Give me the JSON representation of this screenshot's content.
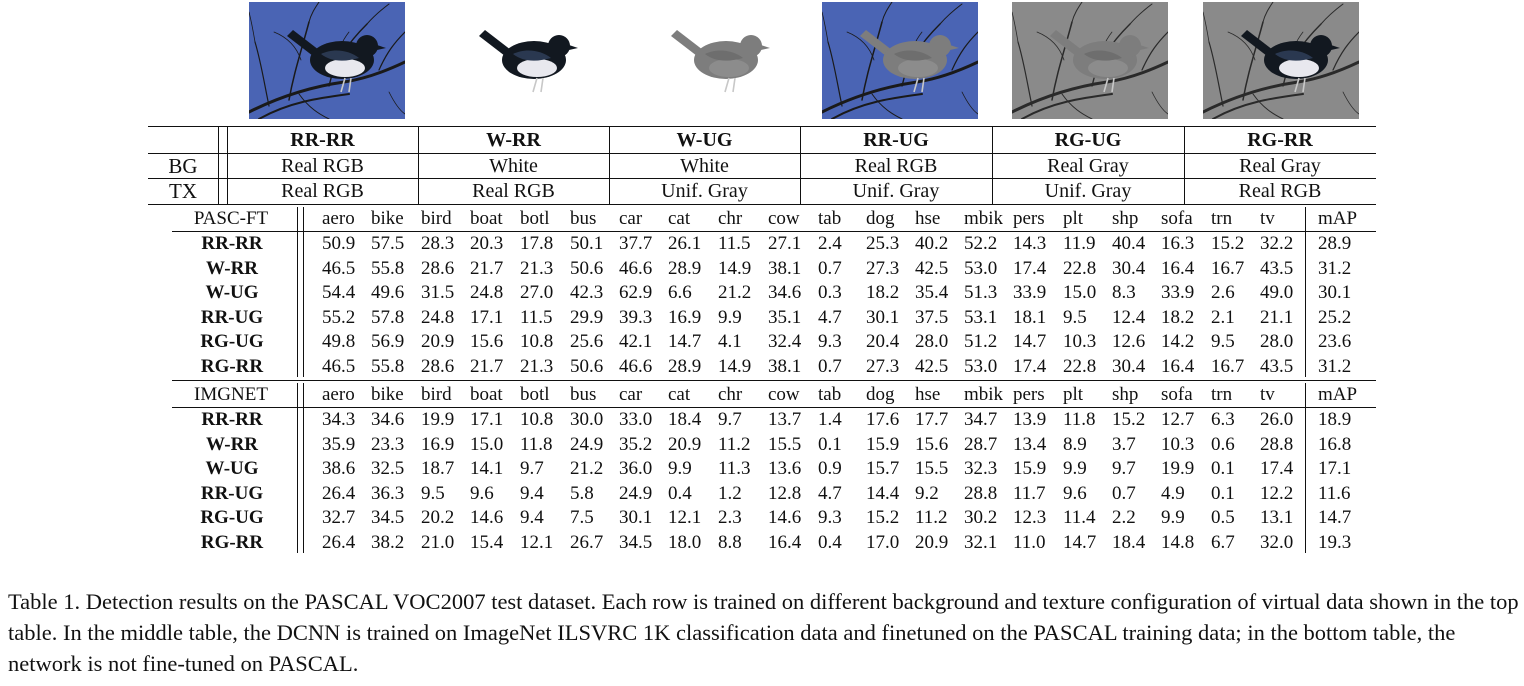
{
  "thumbnails": [
    {
      "name": "rr-rr",
      "bg_color": "#4a64b4",
      "bird": "real"
    },
    {
      "name": "w-rr",
      "bg_color": "#ffffff",
      "bird": "real",
      "no_branches": true
    },
    {
      "name": "w-ug",
      "bg_color": "#ffffff",
      "bird": "gray",
      "no_branches": true
    },
    {
      "name": "rr-ug",
      "bg_color": "#4a64b4",
      "bird": "gray"
    },
    {
      "name": "rg-ug",
      "bg_color": "#8a8a8a",
      "bird": "gray",
      "gray_bg": true
    },
    {
      "name": "rg-rr",
      "bg_color": "#8a8a8a",
      "bird": "real",
      "gray_bg": true
    }
  ],
  "config_table": {
    "row_labels": [
      "BG",
      "TX"
    ],
    "columns": [
      {
        "name": "RR-RR",
        "bg": "Real RGB",
        "tx": "Real RGB"
      },
      {
        "name": "W-RR",
        "bg": "White",
        "tx": "Real RGB"
      },
      {
        "name": "W-UG",
        "bg": "White",
        "tx": "Unif. Gray"
      },
      {
        "name": "RR-UG",
        "bg": "Real RGB",
        "tx": "Unif. Gray"
      },
      {
        "name": "RG-UG",
        "bg": "Real Gray",
        "tx": "Unif. Gray"
      },
      {
        "name": "RG-RR",
        "bg": "Real Gray",
        "tx": "Real RGB"
      }
    ]
  },
  "results": [
    {
      "title": "PASC-FT",
      "headers": [
        "aero",
        "bike",
        "bird",
        "boat",
        "botl",
        "bus",
        "car",
        "cat",
        "chr",
        "cow",
        "tab",
        "dog",
        "hse",
        "mbik",
        "pers",
        "plt",
        "shp",
        "sofa",
        "trn",
        "tv",
        "mAP"
      ],
      "rows": [
        {
          "label": "RR-RR",
          "values": [
            "50.9",
            "57.5",
            "28.3",
            "20.3",
            "17.8",
            "50.1",
            "37.7",
            "26.1",
            "11.5",
            "27.1",
            "2.4",
            "25.3",
            "40.2",
            "52.2",
            "14.3",
            "11.9",
            "40.4",
            "16.3",
            "15.2",
            "32.2",
            "28.9"
          ]
        },
        {
          "label": "W-RR",
          "values": [
            "46.5",
            "55.8",
            "28.6",
            "21.7",
            "21.3",
            "50.6",
            "46.6",
            "28.9",
            "14.9",
            "38.1",
            "0.7",
            "27.3",
            "42.5",
            "53.0",
            "17.4",
            "22.8",
            "30.4",
            "16.4",
            "16.7",
            "43.5",
            "31.2"
          ]
        },
        {
          "label": "W-UG",
          "values": [
            "54.4",
            "49.6",
            "31.5",
            "24.8",
            "27.0",
            "42.3",
            "62.9",
            "6.6",
            "21.2",
            "34.6",
            "0.3",
            "18.2",
            "35.4",
            "51.3",
            "33.9",
            "15.0",
            "8.3",
            "33.9",
            "2.6",
            "49.0",
            "30.1"
          ]
        },
        {
          "label": "RR-UG",
          "values": [
            "55.2",
            "57.8",
            "24.8",
            "17.1",
            "11.5",
            "29.9",
            "39.3",
            "16.9",
            "9.9",
            "35.1",
            "4.7",
            "30.1",
            "37.5",
            "53.1",
            "18.1",
            "9.5",
            "12.4",
            "18.2",
            "2.1",
            "21.1",
            "25.2"
          ]
        },
        {
          "label": "RG-UG",
          "values": [
            "49.8",
            "56.9",
            "20.9",
            "15.6",
            "10.8",
            "25.6",
            "42.1",
            "14.7",
            "4.1",
            "32.4",
            "9.3",
            "20.4",
            "28.0",
            "51.2",
            "14.7",
            "10.3",
            "12.6",
            "14.2",
            "9.5",
            "28.0",
            "23.6"
          ]
        },
        {
          "label": "RG-RR",
          "values": [
            "46.5",
            "55.8",
            "28.6",
            "21.7",
            "21.3",
            "50.6",
            "46.6",
            "28.9",
            "14.9",
            "38.1",
            "0.7",
            "27.3",
            "42.5",
            "53.0",
            "17.4",
            "22.8",
            "30.4",
            "16.4",
            "16.7",
            "43.5",
            "31.2"
          ]
        }
      ]
    },
    {
      "title": "IMGNET",
      "headers": [
        "aero",
        "bike",
        "bird",
        "boat",
        "botl",
        "bus",
        "car",
        "cat",
        "chr",
        "cow",
        "tab",
        "dog",
        "hse",
        "mbik",
        "pers",
        "plt",
        "shp",
        "sofa",
        "trn",
        "tv",
        "mAP"
      ],
      "rows": [
        {
          "label": "RR-RR",
          "values": [
            "34.3",
            "34.6",
            "19.9",
            "17.1",
            "10.8",
            "30.0",
            "33.0",
            "18.4",
            "9.7",
            "13.7",
            "1.4",
            "17.6",
            "17.7",
            "34.7",
            "13.9",
            "11.8",
            "15.2",
            "12.7",
            "6.3",
            "26.0",
            "18.9"
          ]
        },
        {
          "label": "W-RR",
          "values": [
            "35.9",
            "23.3",
            "16.9",
            "15.0",
            "11.8",
            "24.9",
            "35.2",
            "20.9",
            "11.2",
            "15.5",
            "0.1",
            "15.9",
            "15.6",
            "28.7",
            "13.4",
            "8.9",
            "3.7",
            "10.3",
            "0.6",
            "28.8",
            "16.8"
          ]
        },
        {
          "label": "W-UG",
          "values": [
            "38.6",
            "32.5",
            "18.7",
            "14.1",
            "9.7",
            "21.2",
            "36.0",
            "9.9",
            "11.3",
            "13.6",
            "0.9",
            "15.7",
            "15.5",
            "32.3",
            "15.9",
            "9.9",
            "9.7",
            "19.9",
            "0.1",
            "17.4",
            "17.1"
          ]
        },
        {
          "label": "RR-UG",
          "values": [
            "26.4",
            "36.3",
            "9.5",
            "9.6",
            "9.4",
            "5.8",
            "24.9",
            "0.4",
            "1.2",
            "12.8",
            "4.7",
            "14.4",
            "9.2",
            "28.8",
            "11.7",
            "9.6",
            "0.7",
            "4.9",
            "0.1",
            "12.2",
            "11.6"
          ]
        },
        {
          "label": "RG-UG",
          "values": [
            "32.7",
            "34.5",
            "20.2",
            "14.6",
            "9.4",
            "7.5",
            "30.1",
            "12.1",
            "2.3",
            "14.6",
            "9.3",
            "15.2",
            "11.2",
            "30.2",
            "12.3",
            "11.4",
            "2.2",
            "9.9",
            "0.5",
            "13.1",
            "14.7"
          ]
        },
        {
          "label": "RG-RR",
          "values": [
            "26.4",
            "38.2",
            "21.0",
            "15.4",
            "12.1",
            "26.7",
            "34.5",
            "18.0",
            "8.8",
            "16.4",
            "0.4",
            "17.0",
            "20.9",
            "32.1",
            "11.0",
            "14.7",
            "18.4",
            "14.8",
            "6.7",
            "32.0",
            "19.3"
          ]
        }
      ]
    }
  ],
  "caption": "Table 1. Detection results on the PASCAL VOC2007 test dataset. Each row is trained on different background and texture configuration of virtual data shown in the top table. In the middle table, the DCNN is trained on ImageNet ILSVRC 1K classification data and finetuned on the PASCAL training data; in the bottom table, the network is not fine-tuned on PASCAL."
}
